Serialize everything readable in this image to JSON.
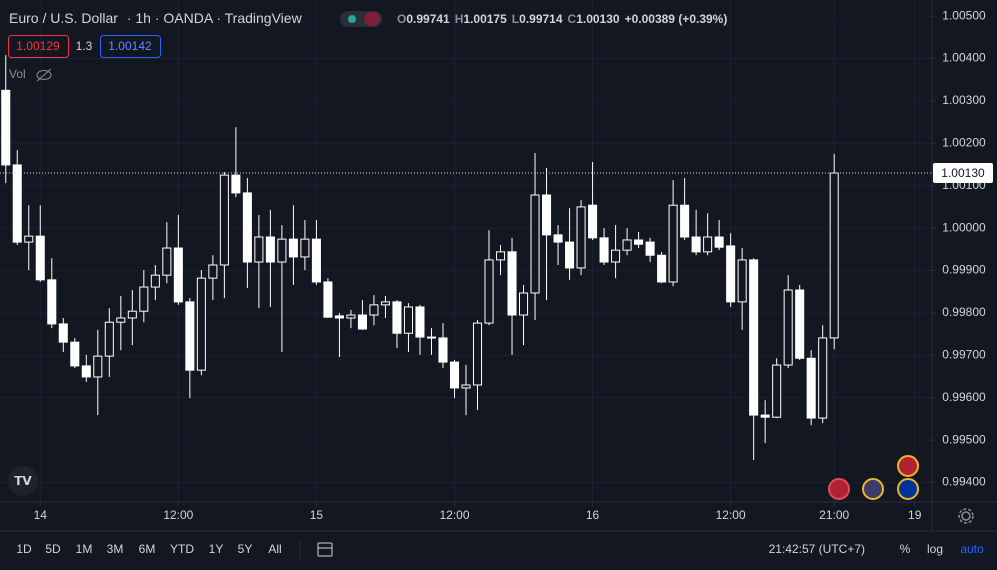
{
  "header": {
    "symbol": "Euro / U.S. Dollar",
    "interval": "1h",
    "exchange": "OANDA",
    "source": "TradingView",
    "o_label": "O",
    "o_value": "0.99741",
    "h_label": "H",
    "h_value": "1.00175",
    "l_label": "L",
    "l_value": "0.99714",
    "c_label": "C",
    "c_value": "1.00130",
    "change": "+0.00389 (+0.39%)"
  },
  "trade": {
    "sell": "1.00129",
    "spread": "1.3",
    "buy": "1.00142"
  },
  "volume_label": "Vol",
  "chart_data": {
    "type": "candlestick",
    "x": [
      -3,
      -2,
      -1,
      0,
      1,
      2,
      3,
      4,
      5,
      6,
      7,
      8,
      9,
      10,
      11,
      12,
      13,
      14,
      15,
      16,
      17,
      18,
      19,
      20,
      21,
      22,
      23,
      24,
      25,
      26,
      27,
      28,
      29,
      30,
      31,
      32,
      33,
      34,
      35,
      36,
      37,
      38,
      39,
      40,
      41,
      42,
      43,
      44,
      45,
      46,
      47,
      48,
      49,
      50,
      51,
      52,
      53,
      54,
      55,
      56,
      57,
      58,
      59,
      60,
      61,
      62,
      63,
      64,
      65,
      66,
      67,
      68,
      69
    ],
    "open": [
      1.00325,
      1.00149,
      0.99967,
      0.99981,
      0.99878,
      0.99774,
      0.99731,
      0.99675,
      0.99649,
      0.99698,
      0.99778,
      0.99788,
      0.99804,
      0.99861,
      0.99889,
      0.99953,
      0.99826,
      0.99665,
      0.99882,
      0.99913,
      1.00125,
      1.00083,
      0.9992,
      0.99979,
      0.9992,
      0.99974,
      0.99932,
      0.99974,
      0.99873,
      0.99793,
      0.99788,
      0.99795,
      0.99795,
      0.99819,
      0.99826,
      0.99752,
      0.99814,
      0.99743,
      0.99741,
      0.99684,
      0.99623,
      0.9963,
      0.99776,
      0.99925,
      0.99944,
      0.99795,
      0.99847,
      1.00078,
      0.99984,
      0.99967,
      0.99906,
      1.00054,
      0.99977,
      0.9992,
      0.99948,
      0.99972,
      0.99967,
      0.99936,
      0.99873,
      1.00054,
      0.99979,
      0.99944,
      0.99979,
      0.99958,
      0.99826,
      0.99925,
      0.99559,
      0.99554,
      0.99677,
      0.99854,
      0.99693,
      0.99552,
      0.99741
    ],
    "high": [
      1.00408,
      1.00184,
      1.00054,
      1.00054,
      0.99929,
      0.99788,
      0.99741,
      0.99701,
      0.9976,
      0.99811,
      0.9984,
      0.99854,
      0.99901,
      0.99913,
      1.00014,
      1.00031,
      0.99835,
      0.99901,
      0.99936,
      1.00132,
      1.00238,
      1.00118,
      1.00031,
      1.00043,
      1.00007,
      1.00054,
      1.00019,
      1.00019,
      0.99882,
      0.998,
      0.99807,
      0.9983,
      0.99842,
      0.9984,
      0.9983,
      0.99823,
      0.99819,
      0.99764,
      0.99776,
      0.99689,
      0.99677,
      0.99783,
      0.99995,
      0.9996,
      0.99977,
      0.99866,
      1.00177,
      1.00142,
      1.00007,
      1.00047,
      1.00066,
      1.00156,
      1.0,
      1.00007,
      1.0,
      0.99991,
      0.99977,
      0.99944,
      1.00113,
      1.00118,
      1.00043,
      1.00035,
      1.00019,
      0.99988,
      0.99953,
      0.99929,
      0.99594,
      0.99693,
      0.99889,
      0.99866,
      0.99712,
      0.99771,
      1.00175
    ],
    "low": [
      1.00106,
      0.9996,
      0.99901,
      0.99873,
      0.99764,
      0.99708,
      0.9967,
      0.99637,
      0.99559,
      0.99649,
      0.99712,
      0.99724,
      0.99778,
      0.9983,
      0.9987,
      0.99819,
      0.99599,
      0.99653,
      0.9983,
      0.99835,
      1.00073,
      0.99859,
      0.99811,
      0.99814,
      0.99708,
      0.99866,
      0.99901,
      0.99866,
      0.99788,
      0.99696,
      0.99764,
      0.9976,
      0.99771,
      0.99788,
      0.99717,
      0.99708,
      0.99701,
      0.99701,
      0.9967,
      0.99599,
      0.99559,
      0.99571,
      0.99771,
      0.99889,
      0.99701,
      0.99724,
      0.99783,
      0.9983,
      0.99913,
      0.99878,
      0.99889,
      0.99972,
      0.99913,
      0.99882,
      0.99936,
      0.99953,
      0.9992,
      0.9987,
      0.99863,
      0.99972,
      0.99936,
      0.99936,
      0.99948,
      0.99814,
      0.9976,
      0.99453,
      0.99493,
      0.99552,
      0.9967,
      0.99689,
      0.99535,
      0.9954,
      0.99714
    ],
    "close": [
      1.00149,
      0.99967,
      0.99981,
      0.99878,
      0.99774,
      0.99731,
      0.99675,
      0.99649,
      0.99698,
      0.99778,
      0.99788,
      0.99804,
      0.99861,
      0.99889,
      0.99953,
      0.99826,
      0.99665,
      0.99882,
      0.99913,
      1.00125,
      1.00083,
      0.9992,
      0.99979,
      0.9992,
      0.99974,
      0.99932,
      0.99974,
      0.99873,
      0.9979,
      0.99788,
      0.99795,
      0.99762,
      0.99819,
      0.99826,
      0.99752,
      0.99814,
      0.99743,
      0.99741,
      0.99684,
      0.99623,
      0.9963,
      0.99776,
      0.99925,
      0.99944,
      0.99795,
      0.99847,
      1.00078,
      0.99984,
      0.99967,
      0.99906,
      1.0005,
      0.99977,
      0.9992,
      0.99948,
      0.99972,
      0.99962,
      0.99936,
      0.99873,
      1.00054,
      0.99979,
      0.99944,
      0.99979,
      0.99955,
      0.99826,
      0.99925,
      0.99559,
      0.99554,
      0.99677,
      0.99854,
      0.99693,
      0.99552,
      0.99741,
      1.0013
    ],
    "xlim": [
      -3.5,
      77.5
    ],
    "xticks": [
      {
        "value": 0,
        "label": "14"
      },
      {
        "value": 12,
        "label": "12:00"
      },
      {
        "value": 24,
        "label": "15"
      },
      {
        "value": 36,
        "label": "12:00"
      },
      {
        "value": 48,
        "label": "16"
      },
      {
        "value": 60,
        "label": "12:00"
      },
      {
        "value": 69,
        "label": "21:00"
      },
      {
        "value": 76,
        "label": "19"
      }
    ],
    "ylim": [
      0.99354,
      1.00538
    ],
    "yticks": [
      {
        "value": 1.005,
        "label": "1.00500"
      },
      {
        "value": 1.004,
        "label": "1.00400"
      },
      {
        "value": 1.003,
        "label": "1.00300"
      },
      {
        "value": 1.002,
        "label": "1.00200"
      },
      {
        "value": 1.001,
        "label": "1.00100"
      },
      {
        "value": 1.0,
        "label": "1.00000"
      },
      {
        "value": 0.999,
        "label": "0.99900"
      },
      {
        "value": 0.998,
        "label": "0.99800"
      },
      {
        "value": 0.997,
        "label": "0.99700"
      },
      {
        "value": 0.996,
        "label": "0.99600"
      },
      {
        "value": 0.995,
        "label": "0.99500"
      },
      {
        "value": 0.994,
        "label": "0.99400"
      }
    ],
    "last_price": {
      "value": 1.0013,
      "label": "1.00130"
    },
    "candle_color": "#ffffff",
    "background": "#131722",
    "grid": true
  },
  "toolbar": {
    "ranges": [
      "1D",
      "5D",
      "1M",
      "3M",
      "6M",
      "YTD",
      "1Y",
      "5Y",
      "All"
    ],
    "clock": "21:42:57 (UTC+7)",
    "percent": "%",
    "log": "log",
    "auto": "auto"
  }
}
